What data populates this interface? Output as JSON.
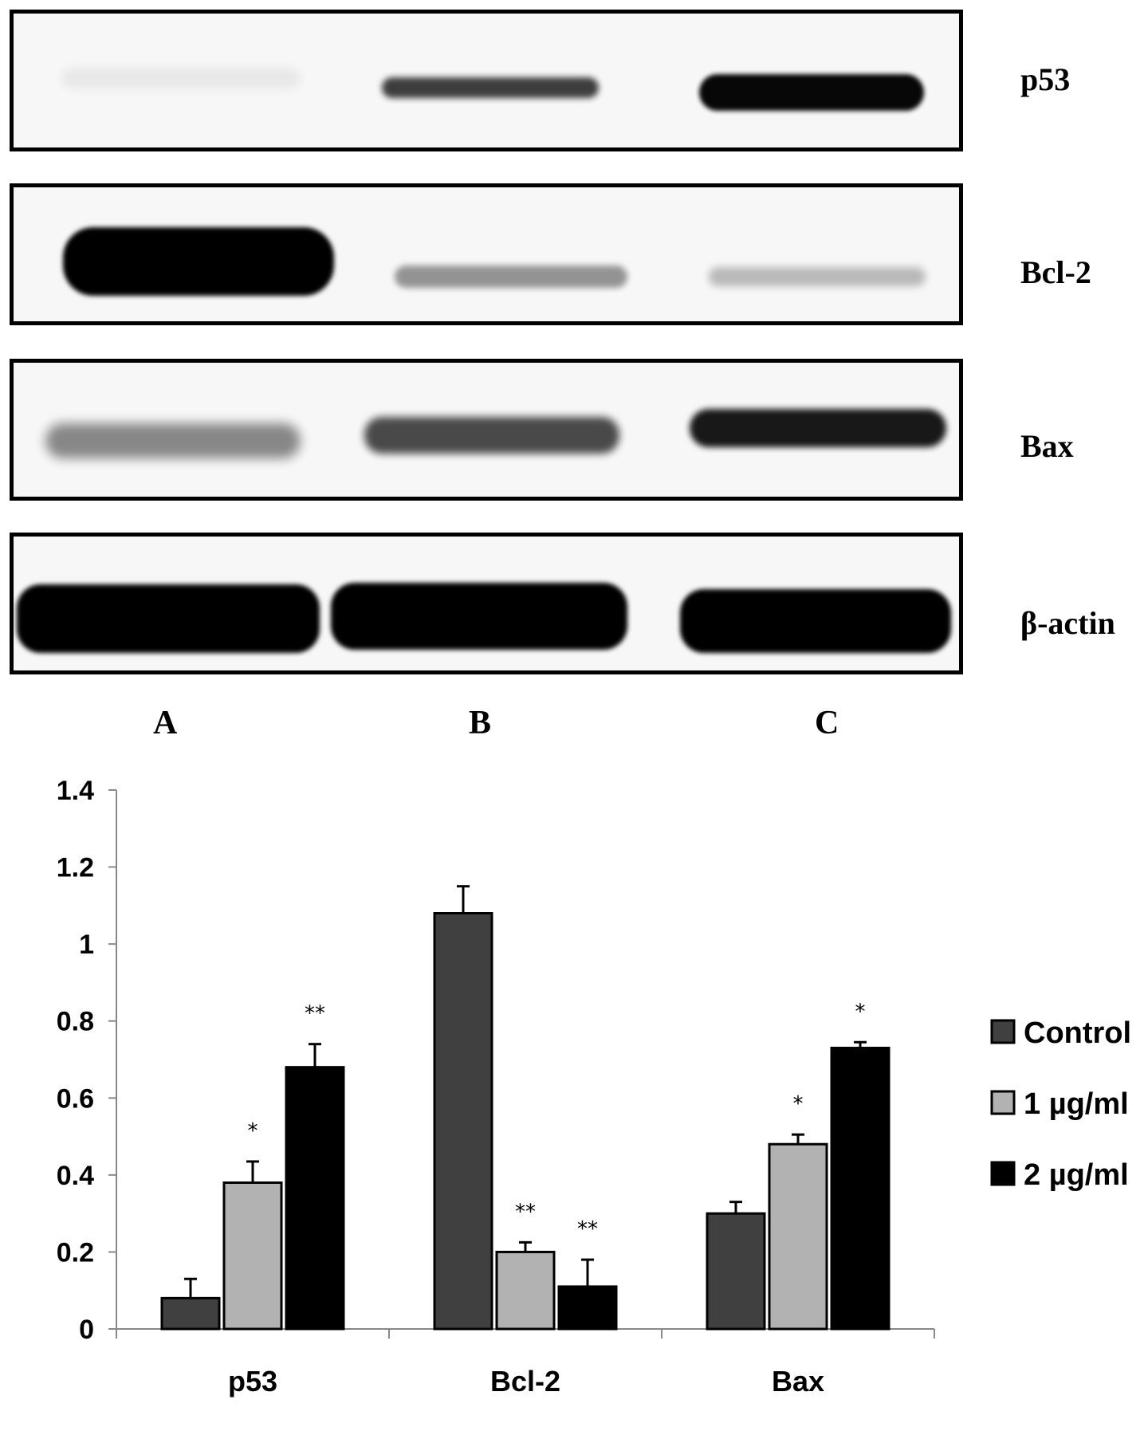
{
  "blots": [
    {
      "label": "p53"
    },
    {
      "label": "Bcl-2"
    },
    {
      "label": "Bax"
    },
    {
      "label": "β-actin"
    }
  ],
  "lanes": [
    "A",
    "B",
    "C"
  ],
  "chart_data": {
    "type": "bar",
    "categories": [
      "p53",
      "Bcl-2",
      "Bax"
    ],
    "series": [
      {
        "name": "Control",
        "values": [
          0.08,
          1.08,
          0.3
        ],
        "errors": [
          0.05,
          0.07,
          0.03
        ],
        "sig": [
          "",
          "",
          ""
        ],
        "color": "#404040"
      },
      {
        "name": "1 µg/ml",
        "values": [
          0.38,
          0.2,
          0.48
        ],
        "errors": [
          0.055,
          0.025,
          0.025
        ],
        "sig": [
          "*",
          "**",
          "*"
        ],
        "color": "#b2b2b2"
      },
      {
        "name": "2 µg/ml",
        "values": [
          0.68,
          0.11,
          0.73
        ],
        "errors": [
          0.06,
          0.07,
          0.015
        ],
        "sig": [
          "**",
          "**",
          "*"
        ],
        "color": "#000000"
      }
    ],
    "ylim": [
      0,
      1.4
    ],
    "yticks": [
      "0",
      "0.2",
      "0.4",
      "0.6",
      "0.8",
      "1",
      "1.2",
      "1.4"
    ],
    "legend_position": "right",
    "grid": false
  }
}
